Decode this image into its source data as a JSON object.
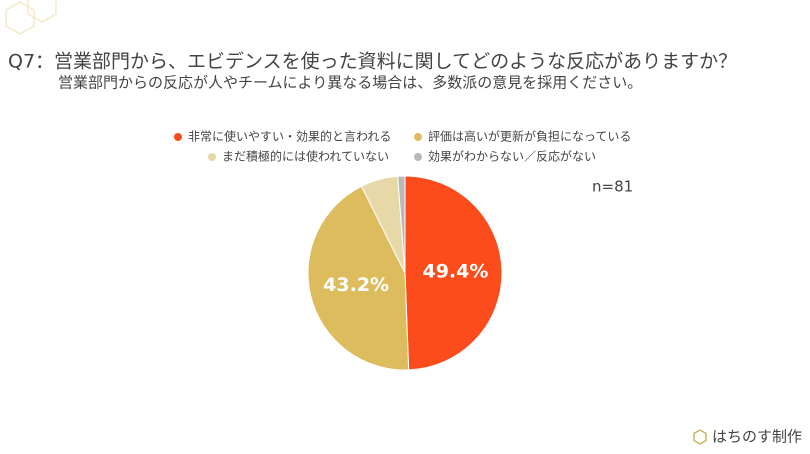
{
  "chart_data": {
    "type": "pie",
    "title": "Q7：営業部門から、エビデンスを使った資料に関してどのような反応がありますか？",
    "subtitle": "営業部門からの反応が人やチームにより異なる場合は、多数派の意見を採用ください。",
    "annotation": "n=81",
    "categories": [
      "非常に使いやすい・効果的と言われる",
      "評価は高いが更新が負担になっている",
      "まだ積極的には使われていない",
      "効果がわからない／反応がない"
    ],
    "values": [
      49.4,
      43.2,
      6.2,
      1.2
    ],
    "value_labels": [
      "49.4%",
      "43.2%",
      null,
      null
    ],
    "colors": [
      "#fc4c1c",
      "#dcbc5c",
      "#e8d8a8",
      "#b8b8b8"
    ],
    "legend": "top"
  },
  "footer": {
    "brand": "はちのす制作"
  }
}
